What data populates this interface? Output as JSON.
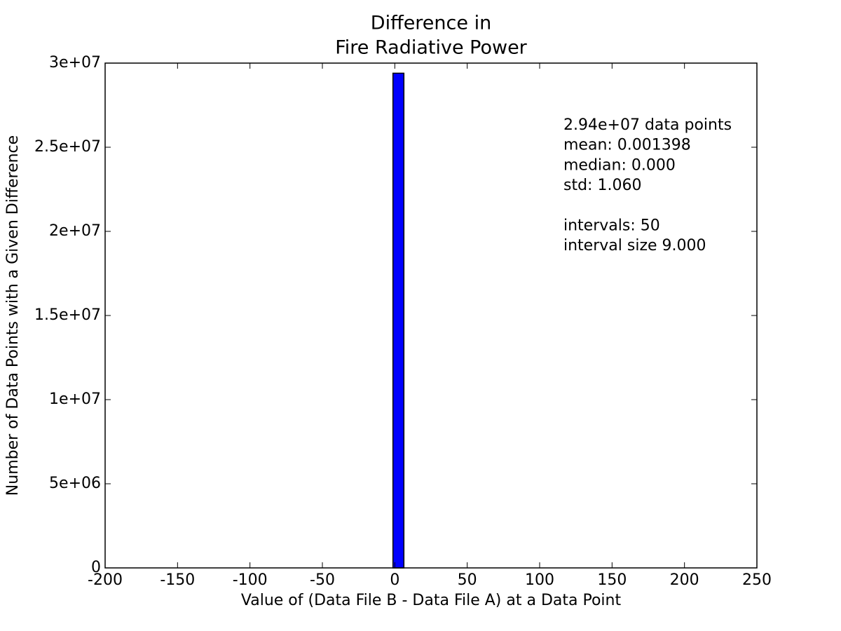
{
  "chart_data": {
    "type": "histogram",
    "title": [
      "Difference in",
      "Fire Radiative Power"
    ],
    "x_label": "Value of (Data File B - Data File A) at a Data Point",
    "y_label": "Number of Data Points with a Given Difference",
    "bins": [
      -200,
      -191,
      -182,
      -173,
      -164,
      -155,
      -146,
      -137,
      -128,
      -119,
      -110,
      -101,
      -92,
      -83,
      -74,
      -65,
      -56,
      -47,
      -38,
      -29,
      -20,
      -11,
      -2,
      7,
      16,
      25,
      34,
      43,
      52,
      61,
      70,
      79,
      88,
      97,
      106,
      115,
      124,
      133,
      142,
      151,
      160,
      169,
      178,
      187,
      196,
      205,
      214,
      223,
      232,
      241,
      250
    ],
    "counts": [
      0,
      0,
      0,
      0,
      0,
      0,
      0,
      0,
      0,
      0,
      0,
      0,
      0,
      0,
      0,
      0,
      0,
      0,
      0,
      0,
      0,
      0,
      29400000,
      0,
      0,
      0,
      0,
      0,
      0,
      0,
      0,
      0,
      0,
      0,
      0,
      0,
      0,
      0,
      0,
      0,
      0,
      0,
      0,
      0,
      0,
      0,
      0,
      0,
      0,
      0
    ],
    "color": "#0000ff",
    "xlim": [
      -200,
      250
    ],
    "xticks": [
      -200,
      -150,
      -100,
      -50,
      0,
      50,
      100,
      150,
      200,
      250
    ],
    "ylim": [
      0,
      30000000
    ],
    "yticks": [
      0,
      {
        "value": 5000000,
        "label": "5e+06"
      },
      {
        "value": 10000000,
        "label": "1e+07"
      },
      {
        "value": 15000000,
        "label": "1.5e+07"
      },
      {
        "value": 20000000,
        "label": "2e+07"
      },
      {
        "value": 25000000,
        "label": "2.5e+07"
      },
      {
        "value": 30000000,
        "label": "3e+07"
      }
    ],
    "stats_text": [
      "2.94e+07 data points",
      "mean: 0.001398",
      "median: 0.000",
      "std: 1.060"
    ],
    "interval_text": [
      "intervals: 50",
      "interval size 9.000"
    ]
  }
}
